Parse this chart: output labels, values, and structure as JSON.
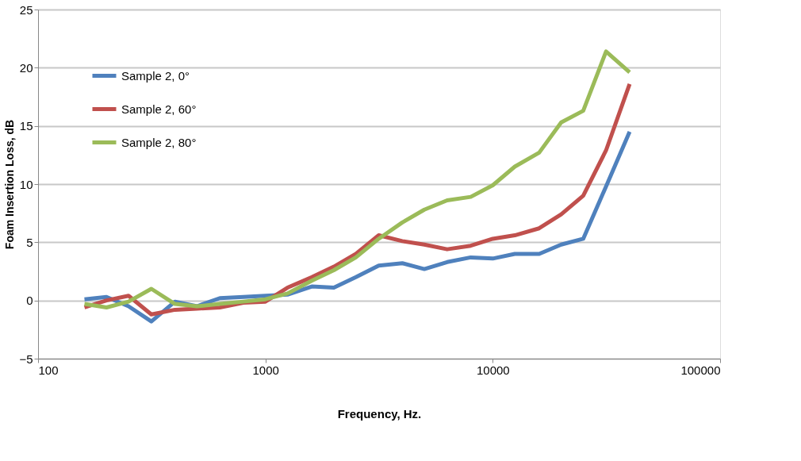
{
  "chart_data": {
    "type": "line",
    "xlabel": "Frequency, Hz.",
    "ylabel": "Foam Insertion Loss, dB",
    "log": "x",
    "x": [
      160,
      200,
      250,
      315,
      400,
      500,
      630,
      800,
      1000,
      1250,
      1600,
      2000,
      2500,
      3150,
      4000,
      5000,
      6300,
      8000,
      10000,
      12500,
      16000,
      20000,
      25000,
      31500,
      40000
    ],
    "series": [
      {
        "name": "Sample 2, 0°",
        "color": "#4f81bd",
        "values": [
          0.1,
          0.3,
          -0.5,
          -1.8,
          -0.1,
          -0.5,
          0.2,
          0.3,
          0.4,
          0.5,
          1.2,
          1.1,
          2.0,
          3.0,
          3.2,
          2.7,
          3.3,
          3.7,
          3.6,
          4.0,
          4.0,
          4.8,
          5.3,
          9.8,
          14.5
        ]
      },
      {
        "name": "Sample 2, 60°",
        "color": "#c0504d",
        "values": [
          -0.6,
          0.0,
          0.4,
          -1.2,
          -0.8,
          -0.7,
          -0.6,
          -0.2,
          -0.1,
          1.1,
          2.0,
          2.9,
          4.0,
          5.6,
          5.1,
          4.8,
          4.4,
          4.7,
          5.3,
          5.6,
          6.2,
          7.4,
          9.0,
          12.9,
          18.6
        ]
      },
      {
        "name": "Sample 2, 80°",
        "color": "#9bbb59",
        "values": [
          -0.3,
          -0.6,
          -0.1,
          1.0,
          -0.3,
          -0.5,
          -0.3,
          -0.1,
          0.1,
          0.6,
          1.7,
          2.6,
          3.7,
          5.3,
          6.7,
          7.8,
          8.6,
          8.9,
          9.9,
          11.5,
          12.7,
          15.3,
          16.3,
          21.4,
          19.6
        ]
      }
    ],
    "xlim": [
      100,
      100000
    ],
    "xticks": [
      100,
      1000,
      10000,
      100000
    ],
    "ylim": [
      -5,
      25
    ],
    "yticks": [
      -5,
      0,
      5,
      10,
      15,
      20,
      25
    ],
    "grid": "y",
    "legend": "top left",
    "marker": "none",
    "line_style": "solid"
  }
}
